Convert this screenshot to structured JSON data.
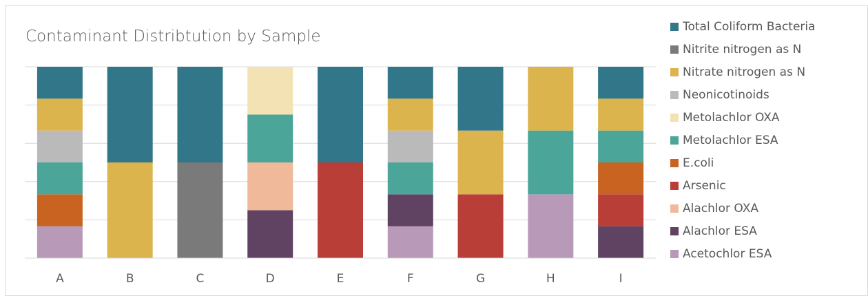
{
  "chart_data": {
    "type": "bar",
    "stacked": "percent",
    "title": "Contaminant Distribtution by Sample",
    "xlabel": "",
    "ylabel": "",
    "ylim": [
      0,
      1
    ],
    "grid": true,
    "legend_position": "right",
    "categories": [
      "A",
      "B",
      "C",
      "D",
      "E",
      "F",
      "G",
      "H",
      "I"
    ],
    "series": [
      {
        "name": "Acetochlor ESA",
        "color": "#b899b8",
        "values": [
          1,
          0,
          0,
          0,
          0,
          1,
          0,
          1,
          0
        ]
      },
      {
        "name": "Alachlor ESA",
        "color": "#604262",
        "values": [
          0,
          0,
          0,
          1,
          0,
          1,
          0,
          0,
          1
        ]
      },
      {
        "name": "Alachlor OXA",
        "color": "#efb99a",
        "values": [
          0,
          0,
          0,
          1,
          0,
          0,
          0,
          0,
          0
        ]
      },
      {
        "name": "Arsenic",
        "color": "#b93e37",
        "values": [
          0,
          0,
          0,
          0,
          1,
          0,
          1,
          0,
          1
        ]
      },
      {
        "name": "E.coli",
        "color": "#c86322",
        "values": [
          1,
          0,
          0,
          0,
          0,
          0,
          0,
          0,
          1
        ]
      },
      {
        "name": "Metolachlor ESA",
        "color": "#4ba598",
        "values": [
          1,
          0,
          0,
          1,
          0,
          1,
          0,
          1,
          1
        ]
      },
      {
        "name": "Metolachlor OXA",
        "color": "#f3e2b4",
        "values": [
          0,
          0,
          0,
          1,
          0,
          0,
          0,
          0,
          0
        ]
      },
      {
        "name": "Neonicotinoids",
        "color": "#bababa",
        "values": [
          1,
          0,
          0,
          0,
          0,
          1,
          0,
          0,
          0
        ]
      },
      {
        "name": "Nitrate nitrogen as N",
        "color": "#dcb44d",
        "values": [
          1,
          1,
          0,
          0,
          0,
          1,
          1,
          1,
          1
        ]
      },
      {
        "name": "Nitrite nitrogen as N",
        "color": "#7a7a7a",
        "values": [
          0,
          0,
          1,
          0,
          0,
          0,
          0,
          0,
          0
        ]
      },
      {
        "name": "Total Coliform Bacteria",
        "color": "#327689",
        "values": [
          1,
          1,
          1,
          0,
          1,
          1,
          1,
          0,
          1
        ]
      }
    ]
  }
}
